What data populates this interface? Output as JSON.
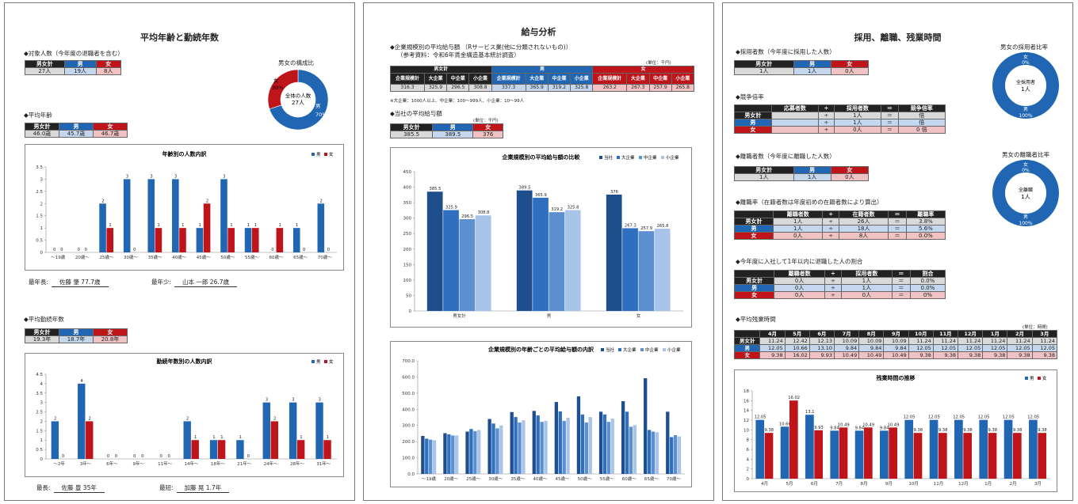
{
  "p1": {
    "title": "平均年齢と勤続年数",
    "sec_target": "◆対象人数（今年度の退職者を含む）",
    "target_table": {
      "headers": [
        "男女計",
        "男",
        "女"
      ],
      "values": [
        "27人",
        "19人",
        "8人"
      ]
    },
    "donut": {
      "title": "男女の構成比",
      "center1": "全体の人数",
      "center2": "27人",
      "female_label": "女",
      "female_pct": "30%",
      "male_label": "男",
      "male_pct": "70%",
      "male_share": 0.7
    },
    "sec_age": "◆平均年齢",
    "age_table": {
      "headers": [
        "男女計",
        "男",
        "女"
      ],
      "values": [
        "46.0歳",
        "45.7歳",
        "46.7歳"
      ]
    },
    "age_extremes": {
      "oldest_label": "最年長:",
      "oldest_value": "佐藤 肇 77.7歳",
      "youngest_label": "最年少:",
      "youngest_value": "山本 一郎 26.7歳"
    },
    "sec_tenure": "◆平均勤続年数",
    "tenure_table": {
      "headers": [
        "男女計",
        "男",
        "女"
      ],
      "values": [
        "19.3年",
        "18.7年",
        "20.8年"
      ]
    },
    "tenure_extremes": {
      "longest_label": "最長:",
      "longest_value": "佐藤 豊 35年",
      "shortest_label": "最短:",
      "shortest_value": "加藤 晃 1.7年"
    }
  },
  "p2": {
    "title": "給与分析",
    "sec_scale": "◆企業規模別の平均給与額 （Rサービス業(他に分類されないもの)）",
    "sec_scale_sub": "（参考資料：令和6年賃金構造基本統計調査）",
    "unit": "(単位：千円)",
    "scale_table": {
      "groups": [
        "男女計",
        "男",
        "女"
      ],
      "sub": [
        "企業規模計",
        "大企業",
        "中企業",
        "小企業"
      ],
      "values": [
        [
          "316.3",
          "325.9",
          "296.5",
          "308.8"
        ],
        [
          "337.3",
          "365.9",
          "319.2",
          "325.8"
        ],
        [
          "263.2",
          "267.3",
          "257.9",
          "265.8"
        ]
      ]
    },
    "note": "※大企業：1000人以上、中企業：100〜999人、小企業：10〜99人",
    "sec_own": "◆当社の平均給与額",
    "own_table": {
      "headers": [
        "男女計",
        "男",
        "女"
      ],
      "values": [
        "385.5",
        "389.5",
        "376"
      ]
    }
  },
  "p3": {
    "title": "採用、離職、残業時間",
    "sec_hire": "◆採用者数（今年度に採用した人数）",
    "hire_table": {
      "headers": [
        "男女計",
        "男",
        "女"
      ],
      "values": [
        "1人",
        "1人",
        "0人"
      ]
    },
    "hire_donut": {
      "title": "男女の採用者比率",
      "center1": "全採用者",
      "center2": "1人",
      "female_label": "女",
      "female_pct": "0%",
      "male_label": "男",
      "male_pct": "100%",
      "male_share": 1.0
    },
    "sec_comp": "◆競争倍率",
    "comp_table": {
      "headers": [
        "",
        "応募者数",
        "÷",
        "採用者数",
        "＝",
        "競争倍率"
      ],
      "rows": [
        [
          "男女計",
          "",
          "÷",
          "1人",
          "＝",
          "倍"
        ],
        [
          "男",
          "",
          "÷",
          "1人",
          "＝",
          "倍"
        ],
        [
          "女",
          "",
          "÷",
          "0人",
          "＝",
          "0 倍"
        ]
      ]
    },
    "sec_leave": "◆離職者数（今年度に離職した人数）",
    "leave_table": {
      "headers": [
        "男女計",
        "男",
        "女"
      ],
      "values": [
        "1人",
        "1人",
        "0人"
      ]
    },
    "leave_donut": {
      "title": "男女の離職者比率",
      "center1": "全離職",
      "center2": "1人",
      "female_label": "女",
      "female_pct": "0%",
      "male_label": "男",
      "male_pct": "100%",
      "male_share": 1.0
    },
    "sec_rate": "◆離職率（在籍者数は年度初めの在籍者数により算出）",
    "rate_table": {
      "headers": [
        "",
        "離職者数",
        "÷",
        "在籍者数",
        "＝",
        "離職率"
      ],
      "rows": [
        [
          "男女計",
          "1人",
          "÷",
          "26人",
          "＝",
          "3.8%"
        ],
        [
          "男",
          "1人",
          "÷",
          "18人",
          "＝",
          "5.6%"
        ],
        [
          "女",
          "0人",
          "÷",
          "8人",
          "＝",
          "0.0%"
        ]
      ]
    },
    "sec_first": "◆今年度に入社して1年以内に退職した人の割合",
    "first_table": {
      "headers": [
        "",
        "離職者数",
        "÷",
        "採用者数",
        "＝",
        "割合"
      ],
      "rows": [
        [
          "男女計",
          "0人",
          "÷",
          "1人",
          "＝",
          "0.0%"
        ],
        [
          "男",
          "0人",
          "÷",
          "1人",
          "＝",
          "0.0%"
        ],
        [
          "女",
          "0人",
          "÷",
          "0人",
          "＝",
          "0%"
        ]
      ]
    },
    "sec_ot": "◆平均残業時間",
    "ot_unit": "(単位：時間)",
    "ot_table": {
      "months": [
        "4月",
        "5月",
        "6月",
        "7月",
        "8月",
        "9月",
        "10月",
        "11月",
        "12月",
        "1月",
        "2月",
        "3月"
      ],
      "rows": [
        [
          "男女計",
          "11.24",
          "12.42",
          "12.13",
          "10.09",
          "10.09",
          "10.09",
          "11.24",
          "11.24",
          "11.24",
          "11.24",
          "11.24",
          "11.24"
        ],
        [
          "男",
          "12.05",
          "10.66",
          "13.10",
          "9.84",
          "9.84",
          "9.84",
          "12.05",
          "12.05",
          "12.05",
          "12.05",
          "12.05",
          "12.05"
        ],
        [
          "女",
          "9.38",
          "16.02",
          "9.93",
          "10.49",
          "10.49",
          "10.49",
          "9.38",
          "9.38",
          "9.38",
          "9.38",
          "9.38",
          "9.38"
        ]
      ]
    }
  },
  "colors": {
    "male": "#2166b3",
    "female": "#c0141b",
    "black": "#222222"
  },
  "chart_data": [
    {
      "id": "age",
      "type": "bar",
      "title": "年齢別の人数内訳",
      "categories": [
        "〜19歳",
        "20歳〜",
        "25歳〜",
        "30歳〜",
        "35歳〜",
        "40歳〜",
        "45歳〜",
        "50歳〜",
        "55歳〜",
        "60歳〜",
        "65歳〜",
        "70歳〜"
      ],
      "series": [
        {
          "name": "男",
          "values": [
            0,
            0,
            2,
            3,
            3,
            3,
            1,
            3,
            1,
            0,
            1,
            2
          ]
        },
        {
          "name": "女",
          "values": [
            0,
            0,
            1,
            0,
            1,
            1,
            2,
            1,
            1,
            1,
            0,
            0
          ]
        }
      ],
      "ylim": [
        0,
        3.5
      ],
      "yticks": [
        "0",
        "0.5",
        "1",
        "1.5",
        "2",
        "2.5",
        "3",
        "3.5"
      ],
      "legend": "top-right"
    },
    {
      "id": "tenure",
      "type": "bar",
      "title": "勤続年数別の人数内訳",
      "categories": [
        "〜2年",
        "3年〜",
        "6年〜",
        "9年〜",
        "11年〜",
        "14年〜",
        "18年〜",
        "21年〜",
        "24年〜",
        "28年〜",
        "31年〜"
      ],
      "series": [
        {
          "name": "男",
          "values": [
            2,
            4,
            0,
            0,
            0,
            2,
            1,
            1,
            3,
            3,
            3
          ]
        },
        {
          "name": "女",
          "values": [
            0,
            2,
            0,
            0,
            0,
            1,
            1,
            0,
            2,
            1,
            1
          ]
        }
      ],
      "ylim": [
        0,
        4.5
      ],
      "yticks": [
        "0",
        "0.5",
        "1",
        "1.5",
        "2",
        "2.5",
        "3",
        "3.5",
        "4",
        "4.5"
      ],
      "legend": "top-right"
    },
    {
      "id": "salary",
      "type": "bar",
      "title": "企業規模別の平均給与額の比較",
      "categories": [
        "男女計",
        "男",
        "女"
      ],
      "series": [
        {
          "name": "当社",
          "values": [
            385.5,
            389.5,
            376
          ]
        },
        {
          "name": "大企業",
          "values": [
            325.9,
            365.9,
            267.3
          ]
        },
        {
          "name": "中企業",
          "values": [
            296.5,
            319.2,
            257.9
          ]
        },
        {
          "name": "小企業",
          "values": [
            308.8,
            325.8,
            265.8
          ]
        }
      ],
      "ylim": [
        0,
        450
      ],
      "yticks": [
        "0",
        "50",
        "100",
        "150",
        "200",
        "250",
        "300",
        "350",
        "400",
        "450"
      ],
      "legend": "top-right"
    },
    {
      "id": "salary_age",
      "type": "bar",
      "title": "企業規模別の年齢ごとの平均給与額の内訳",
      "categories": [
        "〜19歳",
        "20歳〜",
        "25歳〜",
        "30歳〜",
        "35歳〜",
        "40歳〜",
        "45歳〜",
        "50歳〜",
        "55歳〜",
        "60歳〜",
        "65歳〜",
        "70歳〜"
      ],
      "series": [
        {
          "name": "当社",
          "values": [
            235,
            252,
            262,
            340,
            383,
            390,
            445,
            480,
            385,
            450,
            592,
            385
          ]
        },
        {
          "name": "大企業",
          "values": [
            218,
            245,
            278,
            312,
            352,
            362,
            387,
            368,
            368,
            385,
            272,
            228
          ]
        },
        {
          "name": "中企業",
          "values": [
            212,
            238,
            265,
            282,
            318,
            322,
            328,
            318,
            322,
            292,
            262,
            240
          ]
        },
        {
          "name": "小企業",
          "values": [
            208,
            238,
            272,
            300,
            332,
            328,
            348,
            352,
            342,
            302,
            258,
            232
          ]
        }
      ],
      "ylim": [
        0,
        700
      ],
      "yticks": [
        "0.0",
        "100.0",
        "200.0",
        "300.0",
        "400.0",
        "500.0",
        "600.0",
        "700.0"
      ],
      "legend": "top-right"
    },
    {
      "id": "overtime",
      "type": "bar",
      "title": "残業時間の推移",
      "categories": [
        "4月",
        "5月",
        "6月",
        "7月",
        "8月",
        "9月",
        "10月",
        "11月",
        "12月",
        "1月",
        "2月",
        "3月"
      ],
      "series": [
        {
          "name": "男",
          "values": [
            12.05,
            10.66,
            13.1,
            9.84,
            9.84,
            9.84,
            12.05,
            12.05,
            12.05,
            12.05,
            12.05,
            12.05
          ]
        },
        {
          "name": "女",
          "values": [
            9.38,
            16.02,
            9.93,
            10.49,
            10.49,
            10.49,
            9.38,
            9.38,
            9.38,
            9.38,
            9.38,
            9.38
          ]
        }
      ],
      "labels": [
        [
          "12.05",
          "9.38"
        ],
        [
          "10.66",
          "16.02"
        ],
        [
          "13.1",
          "9.93"
        ],
        [
          "9.84",
          "10.49"
        ],
        [
          "9.84",
          "10.49"
        ],
        [
          "9.84",
          "10.49"
        ],
        [
          "12.05",
          "9.38"
        ],
        [
          "12.05",
          "9.38"
        ],
        [
          "12.05",
          "9.38"
        ],
        [
          "12.05",
          "9.38"
        ],
        [
          "12.05",
          "9.38"
        ],
        [
          "12.05",
          "9.38"
        ]
      ],
      "ylim": [
        0,
        18
      ],
      "yticks": [
        "0",
        "2",
        "4",
        "6",
        "8",
        "10",
        "12",
        "14",
        "16",
        "18"
      ],
      "legend": "top-right"
    }
  ]
}
